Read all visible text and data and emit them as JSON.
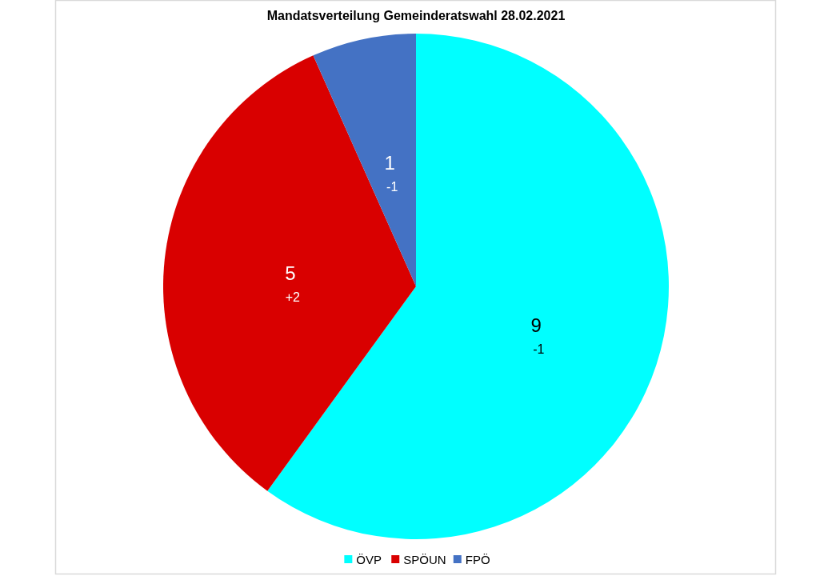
{
  "chart_data": {
    "type": "pie",
    "title": "Mandatsverteilung Gemeinderatswahl 28.02.2021",
    "categories": [
      "ÖVP",
      "SPÖUN",
      "FPÖ"
    ],
    "values": [
      9,
      5,
      1
    ],
    "colors": [
      "#00ffff",
      "#d90000",
      "#4472c4"
    ],
    "data_labels": true,
    "legend": "bottom",
    "annotations": [
      {
        "text": "-1",
        "x": "ÖVP"
      },
      {
        "text": "+2",
        "x": "SPÖUN"
      },
      {
        "text": "-1",
        "x": "FPÖ"
      }
    ]
  }
}
